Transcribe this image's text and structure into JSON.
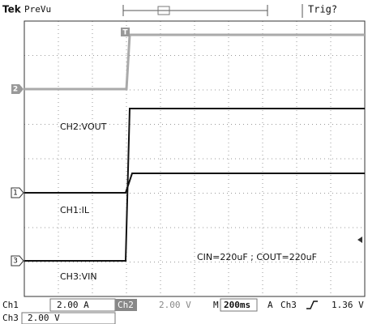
{
  "header": {
    "brand": "Tek",
    "mode": "PreVu",
    "trigger_status": "Trig?"
  },
  "trigger_marker": "T",
  "channel_markers": [
    "2",
    "1",
    "3"
  ],
  "labels": [
    "CH2:VOUT",
    "CH1:IL",
    "CH3:VIN",
    "CIN=220uF ; COUT=220uF"
  ],
  "status": {
    "ch1": {
      "name": "Ch1",
      "scale": "2.00 A"
    },
    "ch2": {
      "name": "Ch2",
      "scale": "2.00 V"
    },
    "timebase": {
      "prefix": "M",
      "value": "200ms"
    },
    "trigger": {
      "mode": "A",
      "source": "Ch3",
      "level": "1.36 V"
    },
    "ch3": {
      "name": "Ch3",
      "scale": "2.00 V"
    }
  }
}
